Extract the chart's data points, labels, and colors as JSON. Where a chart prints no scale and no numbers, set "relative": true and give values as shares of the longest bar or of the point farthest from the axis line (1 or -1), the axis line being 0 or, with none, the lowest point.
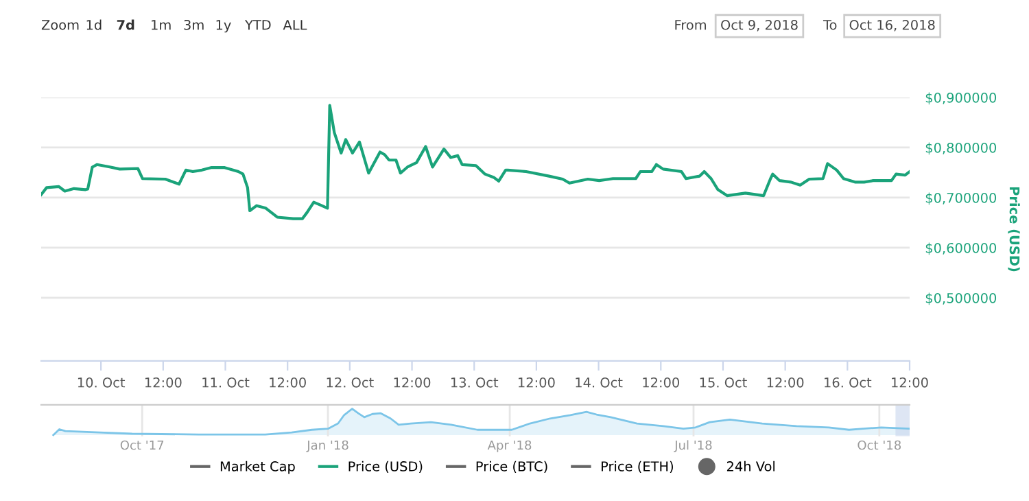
{
  "chart_data": [
    {
      "type": "line",
      "ylabel": "Price (USD)",
      "grid": "y",
      "legend": "bottom",
      "marker": "none",
      "line_style": "solid",
      "annotations": [
        "Zoom",
        "1d",
        "7d",
        "1m",
        "3m",
        "1y",
        "YTD",
        "ALL",
        "From",
        "Oct 9, 2018",
        "To",
        "Oct 16, 2018"
      ],
      "xlim": [
        "2018-10-09T12:28",
        "2018-10-16T12:00"
      ],
      "xticks": [
        {
          "value": "2018-10-10T00:00",
          "label": "10. Oct"
        },
        {
          "value": "2018-10-10T12:00",
          "label": "12:00"
        },
        {
          "value": "2018-10-11T00:00",
          "label": "11. Oct"
        },
        {
          "value": "2018-10-11T12:00",
          "label": "12:00"
        },
        {
          "value": "2018-10-12T00:00",
          "label": "12. Oct"
        },
        {
          "value": "2018-10-12T12:00",
          "label": "12:00"
        },
        {
          "value": "2018-10-13T00:00",
          "label": "13. Oct"
        },
        {
          "value": "2018-10-13T12:00",
          "label": "12:00"
        },
        {
          "value": "2018-10-14T00:00",
          "label": "14. Oct"
        },
        {
          "value": "2018-10-14T12:00",
          "label": "12:00"
        },
        {
          "value": "2018-10-15T00:00",
          "label": "15. Oct"
        },
        {
          "value": "2018-10-15T12:00",
          "label": "12:00"
        },
        {
          "value": "2018-10-16T00:00",
          "label": "16. Oct"
        },
        {
          "value": "2018-10-16T12:00",
          "label": "12:00"
        }
      ],
      "ylim": [
        0.374,
        0.9
      ],
      "yticks": [
        {
          "value": 0.5,
          "label": "$0,500000"
        },
        {
          "value": 0.6,
          "label": "$0,600000"
        },
        {
          "value": 0.7,
          "label": "$0,700000"
        },
        {
          "value": 0.8,
          "label": "$0,800000"
        },
        {
          "value": 0.9,
          "label": "$0,900000"
        }
      ],
      "series": [
        {
          "name": "Market Cap",
          "color": "#666666"
        },
        {
          "name": "Price (USD)",
          "color": "#1aa37a",
          "x": [
            "2018-10-09T12:28",
            "2018-10-09T13:31",
            "2018-10-09T15:53",
            "2018-10-09T17:02",
            "2018-10-09T18:48",
            "2018-10-09T21:01",
            "2018-10-09T21:27",
            "2018-10-09T22:20",
            "2018-10-09T23:13",
            "2018-10-10T01:51",
            "2018-10-10T03:37",
            "2018-10-10T07:08",
            "2018-10-10T08:01",
            "2018-10-10T12:25",
            "2018-10-10T15:04",
            "2018-10-10T16:23",
            "2018-10-10T17:43",
            "2018-10-10T19:28",
            "2018-10-10T21:14",
            "2018-10-10T23:52",
            "2018-10-11T02:31",
            "2018-10-11T03:24",
            "2018-10-11T04:17",
            "2018-10-11T04:43",
            "2018-10-11T06:02",
            "2018-10-11T07:48",
            "2018-10-11T10:01",
            "2018-10-11T13:05",
            "2018-10-11T14:51",
            "2018-10-11T15:44",
            "2018-10-11T17:03",
            "2018-10-11T18:23",
            "2018-10-11T19:42",
            "2018-10-11T20:08",
            "2018-10-11T21:01",
            "2018-10-11T22:20",
            "2018-10-11T23:13",
            "2018-10-12T00:32",
            "2018-10-12T01:52",
            "2018-10-12T03:38",
            "2018-10-12T05:50",
            "2018-10-12T06:43",
            "2018-10-12T07:35",
            "2018-10-12T08:55",
            "2018-10-12T09:47",
            "2018-10-12T11:07",
            "2018-10-12T12:53",
            "2018-10-12T14:38",
            "2018-10-12T15:58",
            "2018-10-12T18:10",
            "2018-10-12T19:29",
            "2018-10-12T20:49",
            "2018-10-12T21:41",
            "2018-10-13T00:20",
            "2018-10-13T02:05",
            "2018-10-13T03:51",
            "2018-10-13T04:44",
            "2018-10-13T06:04",
            "2018-10-13T06:30",
            "2018-10-13T10:01",
            "2018-10-13T14:26",
            "2018-10-13T17:04",
            "2018-10-13T18:23",
            "2018-10-13T21:55",
            "2018-10-14T00:07",
            "2018-10-14T02:46",
            "2018-10-14T07:10",
            "2018-10-14T08:03",
            "2018-10-14T10:15",
            "2018-10-14T11:08",
            "2018-10-14T12:27",
            "2018-10-14T15:59",
            "2018-10-14T16:52",
            "2018-10-14T19:30",
            "2018-10-14T20:23",
            "2018-10-14T21:42",
            "2018-10-14T23:01",
            "2018-10-15T00:47",
            "2018-10-15T04:19",
            "2018-10-15T07:50",
            "2018-10-15T09:10",
            "2018-10-15T09:35",
            "2018-10-15T10:55",
            "2018-10-15T13:07",
            "2018-10-15T14:53",
            "2018-10-15T16:38",
            "2018-10-15T19:17",
            "2018-10-15T20:10",
            "2018-10-15T21:56",
            "2018-10-15T23:15",
            "2018-10-16T01:27",
            "2018-10-16T03:13",
            "2018-10-16T04:59",
            "2018-10-16T08:30",
            "2018-10-16T09:23",
            "2018-10-16T11:08",
            "2018-10-16T12:00"
          ],
          "values": [
            0.706,
            0.72,
            0.722,
            0.713,
            0.718,
            0.716,
            0.717,
            0.761,
            0.766,
            0.761,
            0.757,
            0.758,
            0.738,
            0.737,
            0.727,
            0.755,
            0.752,
            0.755,
            0.76,
            0.76,
            0.752,
            0.747,
            0.72,
            0.674,
            0.684,
            0.679,
            0.661,
            0.658,
            0.658,
            0.67,
            0.691,
            0.685,
            0.679,
            0.884,
            0.83,
            0.789,
            0.816,
            0.789,
            0.811,
            0.749,
            0.791,
            0.786,
            0.775,
            0.775,
            0.749,
            0.761,
            0.77,
            0.802,
            0.761,
            0.797,
            0.78,
            0.784,
            0.766,
            0.764,
            0.747,
            0.74,
            0.733,
            0.755,
            0.755,
            0.752,
            0.743,
            0.737,
            0.729,
            0.737,
            0.734,
            0.738,
            0.738,
            0.752,
            0.752,
            0.766,
            0.757,
            0.752,
            0.738,
            0.743,
            0.752,
            0.738,
            0.716,
            0.704,
            0.709,
            0.704,
            0.738,
            0.747,
            0.734,
            0.731,
            0.725,
            0.737,
            0.738,
            0.768,
            0.755,
            0.738,
            0.731,
            0.731,
            0.734,
            0.734,
            0.747,
            0.745,
            0.752
          ]
        },
        {
          "name": "Price (BTC)",
          "color": "#666666"
        },
        {
          "name": "Price (ETH)",
          "color": "#666666"
        },
        {
          "name": "24h Vol",
          "color": "#666666",
          "type": "scatter"
        }
      ]
    },
    {
      "type": "area",
      "relative": true,
      "grid": "x",
      "color": "#7cc5e8",
      "xlim": [
        "2017-08-12",
        "2018-10-16"
      ],
      "xticks": [
        {
          "value": "2017-10-01",
          "label": "Oct '17"
        },
        {
          "value": "2018-01-01",
          "label": "Jan '18"
        },
        {
          "value": "2018-04-01",
          "label": "Apr '18"
        },
        {
          "value": "2018-07-01",
          "label": "Jul '18"
        },
        {
          "value": "2018-10-01",
          "label": "Oct '18"
        }
      ],
      "bands": [
        {
          "axis": "x",
          "from": "2018-10-09",
          "to": "2018-10-16",
          "color": "#c8d6ec"
        }
      ],
      "x": [
        "2017-08-18",
        "2017-08-21",
        "2017-08-24",
        "2017-09-10",
        "2017-09-26",
        "2017-10-29",
        "2017-12-01",
        "2017-12-14",
        "2017-12-24",
        "2018-01-01",
        "2018-01-06",
        "2018-01-09",
        "2018-01-13",
        "2018-01-16",
        "2018-01-19",
        "2018-01-23",
        "2018-01-27",
        "2018-02-01",
        "2018-02-05",
        "2018-02-11",
        "2018-02-21",
        "2018-03-03",
        "2018-03-16",
        "2018-03-23",
        "2018-04-02",
        "2018-04-11",
        "2018-04-21",
        "2018-05-01",
        "2018-05-09",
        "2018-05-14",
        "2018-05-21",
        "2018-06-03",
        "2018-06-16",
        "2018-06-26",
        "2018-07-02",
        "2018-07-09",
        "2018-07-19",
        "2018-08-04",
        "2018-08-21",
        "2018-09-06",
        "2018-09-16",
        "2018-09-23",
        "2018-10-02",
        "2018-10-16"
      ],
      "values": [
        0,
        0.22,
        0.15,
        0.1,
        0.05,
        0.02,
        0.02,
        0.1,
        0.2,
        0.24,
        0.44,
        0.76,
        1,
        0.83,
        0.68,
        0.8,
        0.83,
        0.63,
        0.39,
        0.44,
        0.49,
        0.39,
        0.2,
        0.2,
        0.2,
        0.44,
        0.63,
        0.76,
        0.88,
        0.78,
        0.68,
        0.44,
        0.34,
        0.24,
        0.29,
        0.49,
        0.59,
        0.44,
        0.34,
        0.29,
        0.2,
        0.24,
        0.29,
        0.24
      ]
    }
  ]
}
